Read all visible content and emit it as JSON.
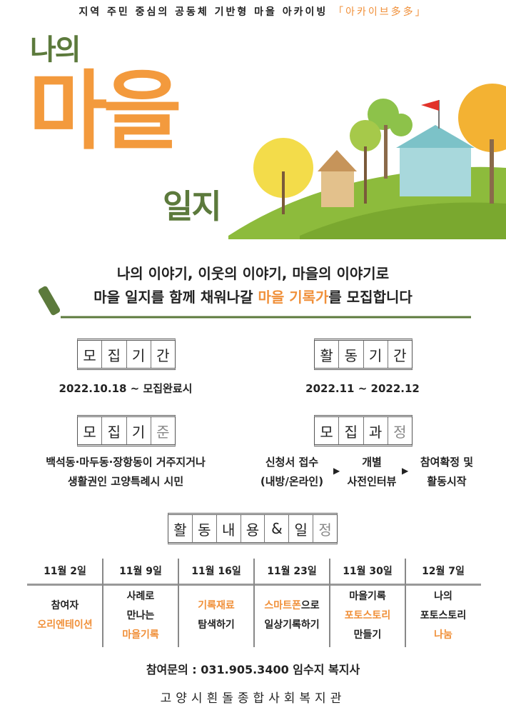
{
  "header": {
    "tagline": "지역 주민 중심의 공동체 기반형 마을 아카이빙",
    "brand": "「아카이브多多」"
  },
  "title": {
    "line1": "나의",
    "line2": "마을",
    "line3": "일지"
  },
  "intro": {
    "line1": "나의 이야기, 이웃의 이야기, 마을의 이야기로",
    "line2_pre": "마을 일지를 함께 채워나갈 ",
    "line2_highlight": "마을 기록가",
    "line2_post": "를 모집합니다"
  },
  "sections": {
    "recruit_period": {
      "chars": [
        "모",
        "집",
        "기",
        "간"
      ],
      "value": "2022.10.18 ~ 모집완료시"
    },
    "activity_period": {
      "chars": [
        "활",
        "동",
        "기",
        "간"
      ],
      "value": "2022.11 ~ 2022.12"
    },
    "criteria": {
      "chars": [
        "모",
        "집",
        "기",
        "준"
      ],
      "lines": [
        "백석동·마두동·장항동이 거주지거나",
        "생활권인 고양특례시 시민"
      ]
    },
    "process": {
      "chars": [
        "모",
        "집",
        "과",
        "정"
      ],
      "steps": [
        [
          "신청서 접수",
          "(내방/온라인)"
        ],
        [
          "개별",
          "사전인터뷰"
        ],
        [
          "참여확정 및",
          "활동시작"
        ]
      ]
    },
    "schedule_title": {
      "chars": [
        "활",
        "동",
        "내",
        "용",
        "&",
        "일",
        "정"
      ]
    }
  },
  "schedule": [
    {
      "date": "11월 2일",
      "lines": [
        {
          "t": "참여자",
          "o": false
        },
        {
          "t": "오리엔테이션",
          "o": true
        }
      ]
    },
    {
      "date": "11월 9일",
      "lines": [
        {
          "t": "사례로",
          "o": false
        },
        {
          "t": "만나는",
          "o": false
        },
        {
          "t": "마을기록",
          "o": true
        }
      ]
    },
    {
      "date": "11월 16일",
      "lines": [
        {
          "t": "기록재료",
          "o": true
        },
        {
          "t": "탐색하기",
          "o": false
        }
      ]
    },
    {
      "date": "11월 23일",
      "lines": [
        {
          "t": "스마트폰",
          "o": true,
          "rest": "으로"
        },
        {
          "t": "일상기록하기",
          "o": false
        }
      ]
    },
    {
      "date": "11월 30일",
      "lines": [
        {
          "t": "마을기록",
          "o": false
        },
        {
          "t": "포토스토리",
          "o": true
        },
        {
          "t": "만들기",
          "o": false
        }
      ]
    },
    {
      "date": "12월 7일",
      "lines": [
        {
          "t": "나의",
          "o": false
        },
        {
          "t": "포토스토리",
          "o": false
        },
        {
          "t": "나눔",
          "o": true
        }
      ]
    }
  ],
  "contact": "참여문의 : 031.905.3400 임수지 복지사",
  "footer": "고양시흰돌종합사회복지관",
  "colors": {
    "accent": "#f0903a",
    "green": "#5c7a3c"
  }
}
